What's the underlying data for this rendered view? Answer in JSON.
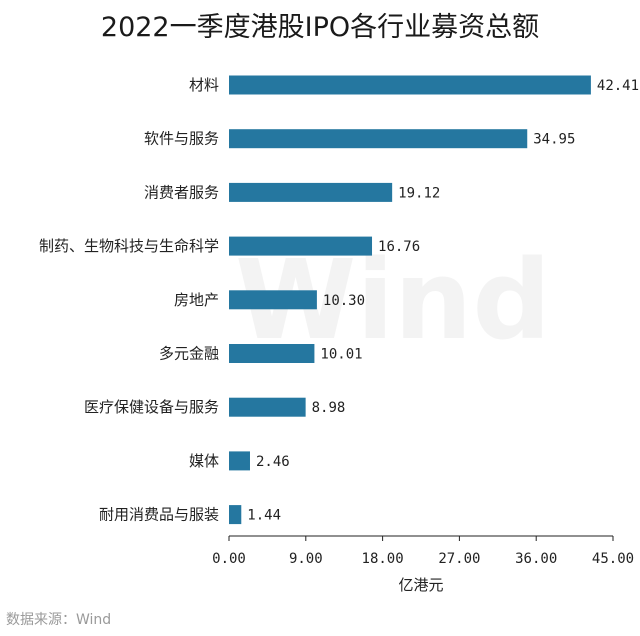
{
  "chart_data": {
    "type": "bar",
    "orientation": "horizontal",
    "title": "2022一季度港股IPO各行业募资总额",
    "categories": [
      "材料",
      "软件与服务",
      "消费者服务",
      "制药、生物科技与生命科学",
      "房地产",
      "多元金融",
      "医疗保健设备与服务",
      "媒体",
      "耐用消费品与服装"
    ],
    "values": [
      42.41,
      34.95,
      19.12,
      16.76,
      10.3,
      10.01,
      8.98,
      2.46,
      1.44
    ],
    "value_labels": [
      "42.41",
      "34.95",
      "19.12",
      "16.76",
      "10.30",
      "10.01",
      "8.98",
      "2.46",
      "1.44"
    ],
    "xlabel": "亿港元",
    "ylabel": "",
    "xlim": [
      0,
      45
    ],
    "xticks": [
      "0.00",
      "9.00",
      "18.00",
      "27.00",
      "36.00",
      "45.00"
    ],
    "grid": false,
    "bar_color": "#2577a0"
  },
  "source": "数据来源：Wind",
  "watermark": "Wind"
}
